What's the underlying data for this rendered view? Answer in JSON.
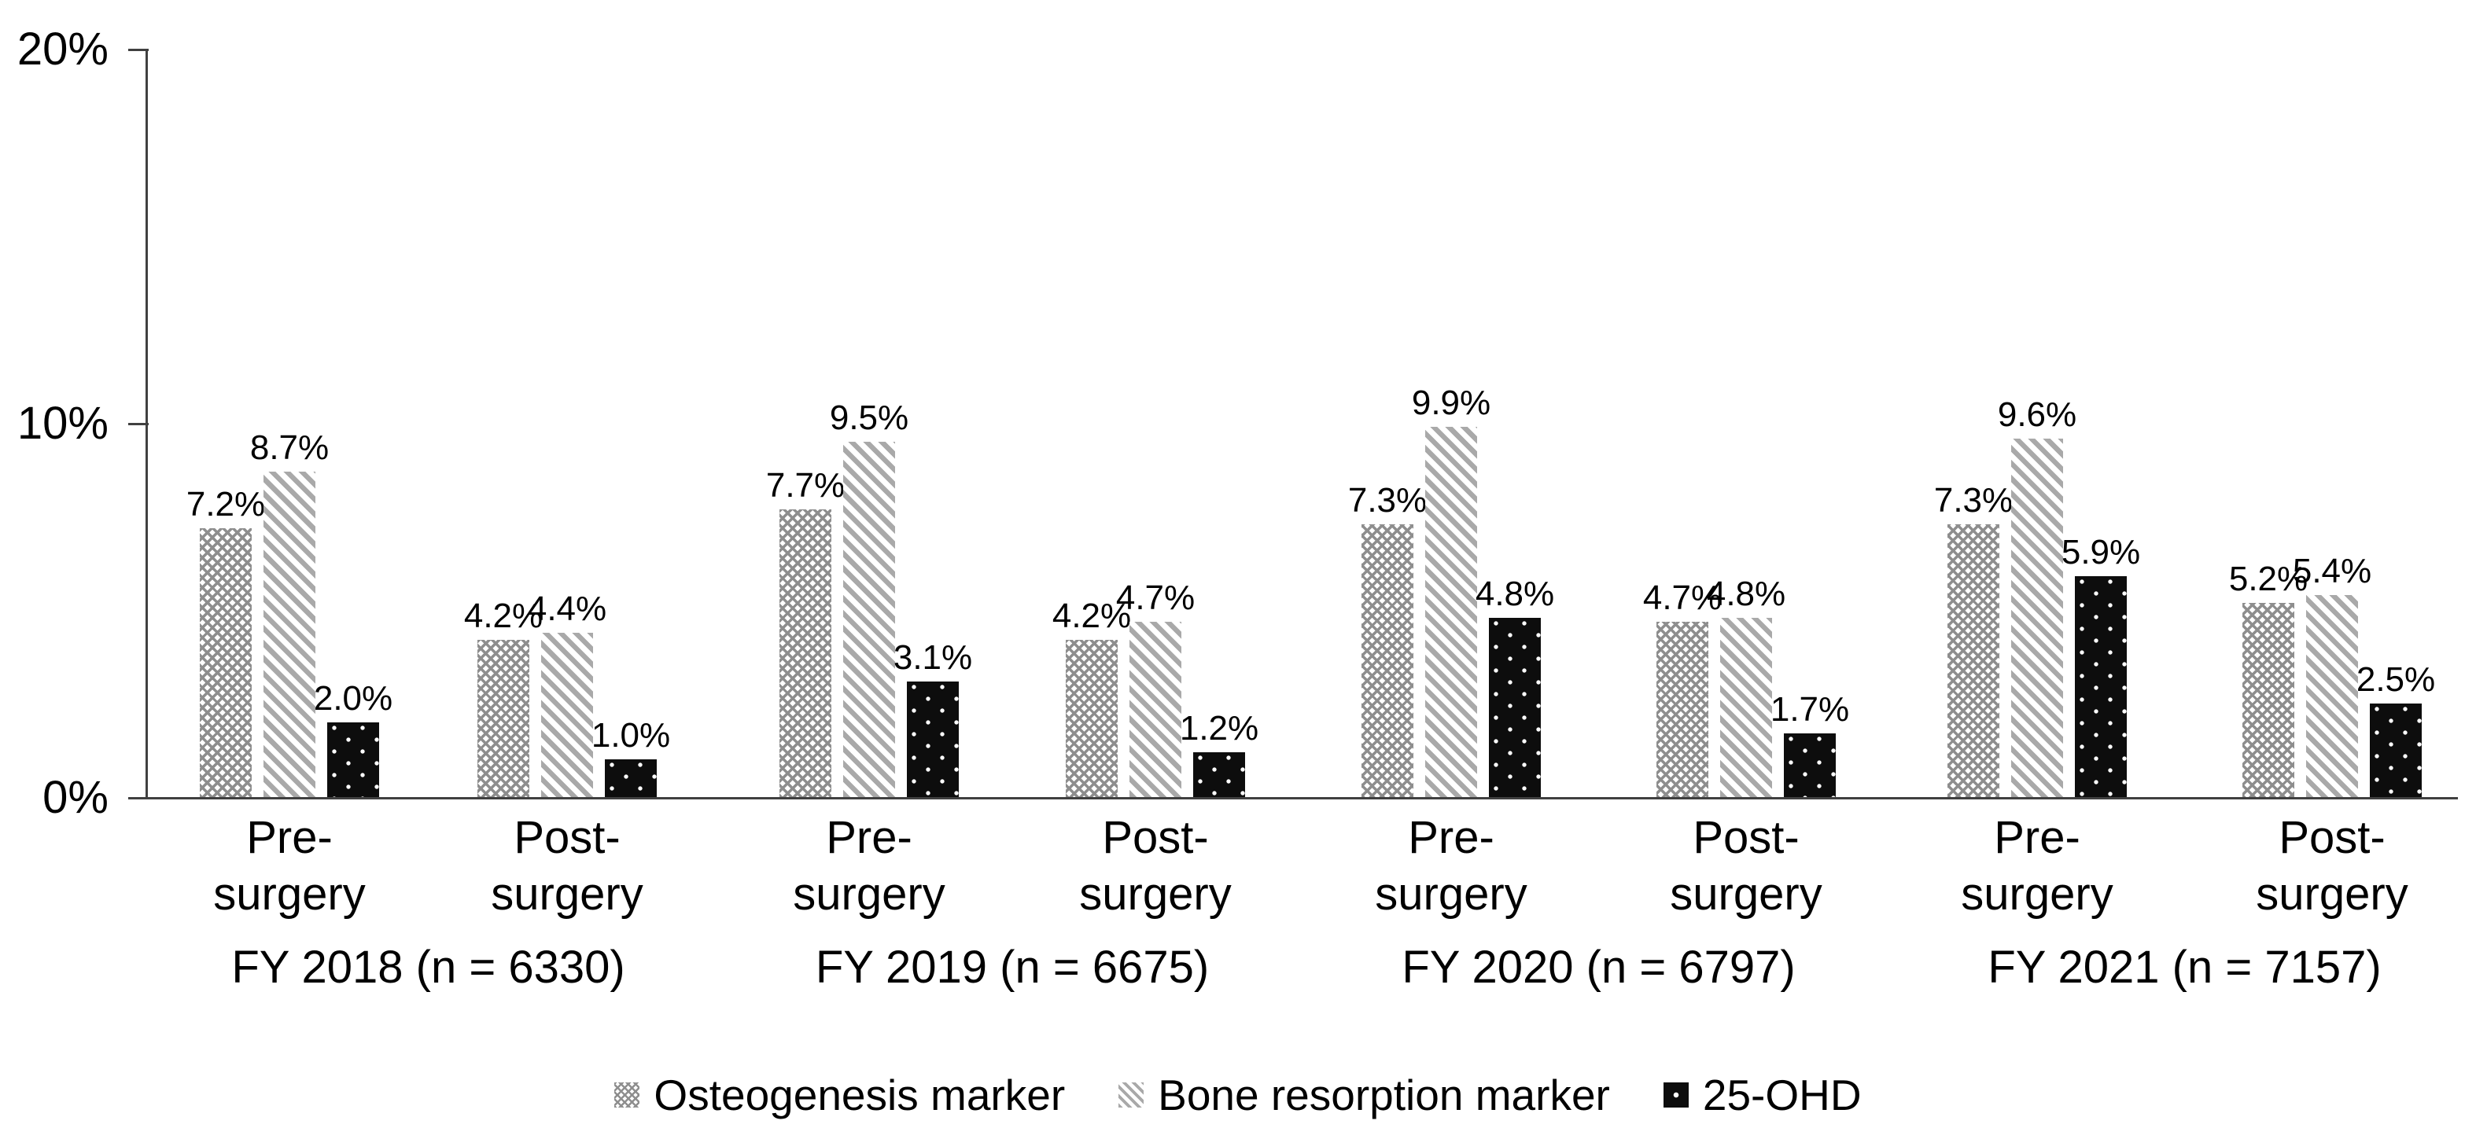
{
  "chart_data": {
    "type": "bar",
    "title": "",
    "xlabel": "",
    "ylabel": "",
    "ylim": [
      0,
      20
    ],
    "yticks": [
      "20%",
      "10%",
      "0%"
    ],
    "grid": false,
    "legend_position": "bottom",
    "axis_color": "#404040",
    "text_color": "#000000",
    "series": [
      {
        "name": "Osteogenesis marker",
        "pattern": "gray-crosshatch",
        "color": "#8e8e8e"
      },
      {
        "name": "Bone resorption marker",
        "pattern": "gray-diagonal-stripes",
        "color": "#a9a9a9"
      },
      {
        "name": "25-OHD",
        "pattern": "black-with-white-dots",
        "color": "#0d0d0d"
      }
    ],
    "groups": [
      {
        "label": "FY 2018 (n = 6330)",
        "clusters": [
          {
            "label_line1": "Pre-",
            "label_line2": "surgery",
            "values": [
              7.2,
              8.7,
              2.0
            ],
            "bar_labels": [
              "7.2%",
              "8.7%",
              "2.0%"
            ]
          },
          {
            "label_line1": "Post-",
            "label_line2": "surgery",
            "values": [
              4.2,
              4.4,
              1.0
            ],
            "bar_labels": [
              "4.2%",
              "4.4%",
              "1.0%"
            ]
          }
        ]
      },
      {
        "label": "FY 2019 (n = 6675)",
        "clusters": [
          {
            "label_line1": "Pre-",
            "label_line2": "surgery",
            "values": [
              7.7,
              9.5,
              3.1
            ],
            "bar_labels": [
              "7.7%",
              "9.5%",
              "3.1%"
            ]
          },
          {
            "label_line1": "Post-",
            "label_line2": "surgery",
            "values": [
              4.2,
              4.7,
              1.2
            ],
            "bar_labels": [
              "4.2%",
              "4.7%",
              "1.2%"
            ]
          }
        ]
      },
      {
        "label": "FY 2020 (n = 6797)",
        "clusters": [
          {
            "label_line1": "Pre-",
            "label_line2": "surgery",
            "values": [
              7.3,
              9.9,
              4.8
            ],
            "bar_labels": [
              "7.3%",
              "9.9%",
              "4.8%"
            ]
          },
          {
            "label_line1": "Post-",
            "label_line2": "surgery",
            "values": [
              4.7,
              4.8,
              1.7
            ],
            "bar_labels": [
              "4.7%",
              "4.8%",
              "1.7%"
            ]
          }
        ]
      },
      {
        "label": "FY 2021 (n = 7157)",
        "clusters": [
          {
            "label_line1": "Pre-",
            "label_line2": "surgery",
            "values": [
              7.3,
              9.6,
              5.9
            ],
            "bar_labels": [
              "7.3%",
              "9.6%",
              "5.9%"
            ]
          },
          {
            "label_line1": "Post-",
            "label_line2": "surgery",
            "values": [
              5.2,
              5.4,
              2.5
            ],
            "bar_labels": [
              "5.2%",
              "5.4%",
              "2.5%"
            ]
          }
        ]
      }
    ]
  }
}
